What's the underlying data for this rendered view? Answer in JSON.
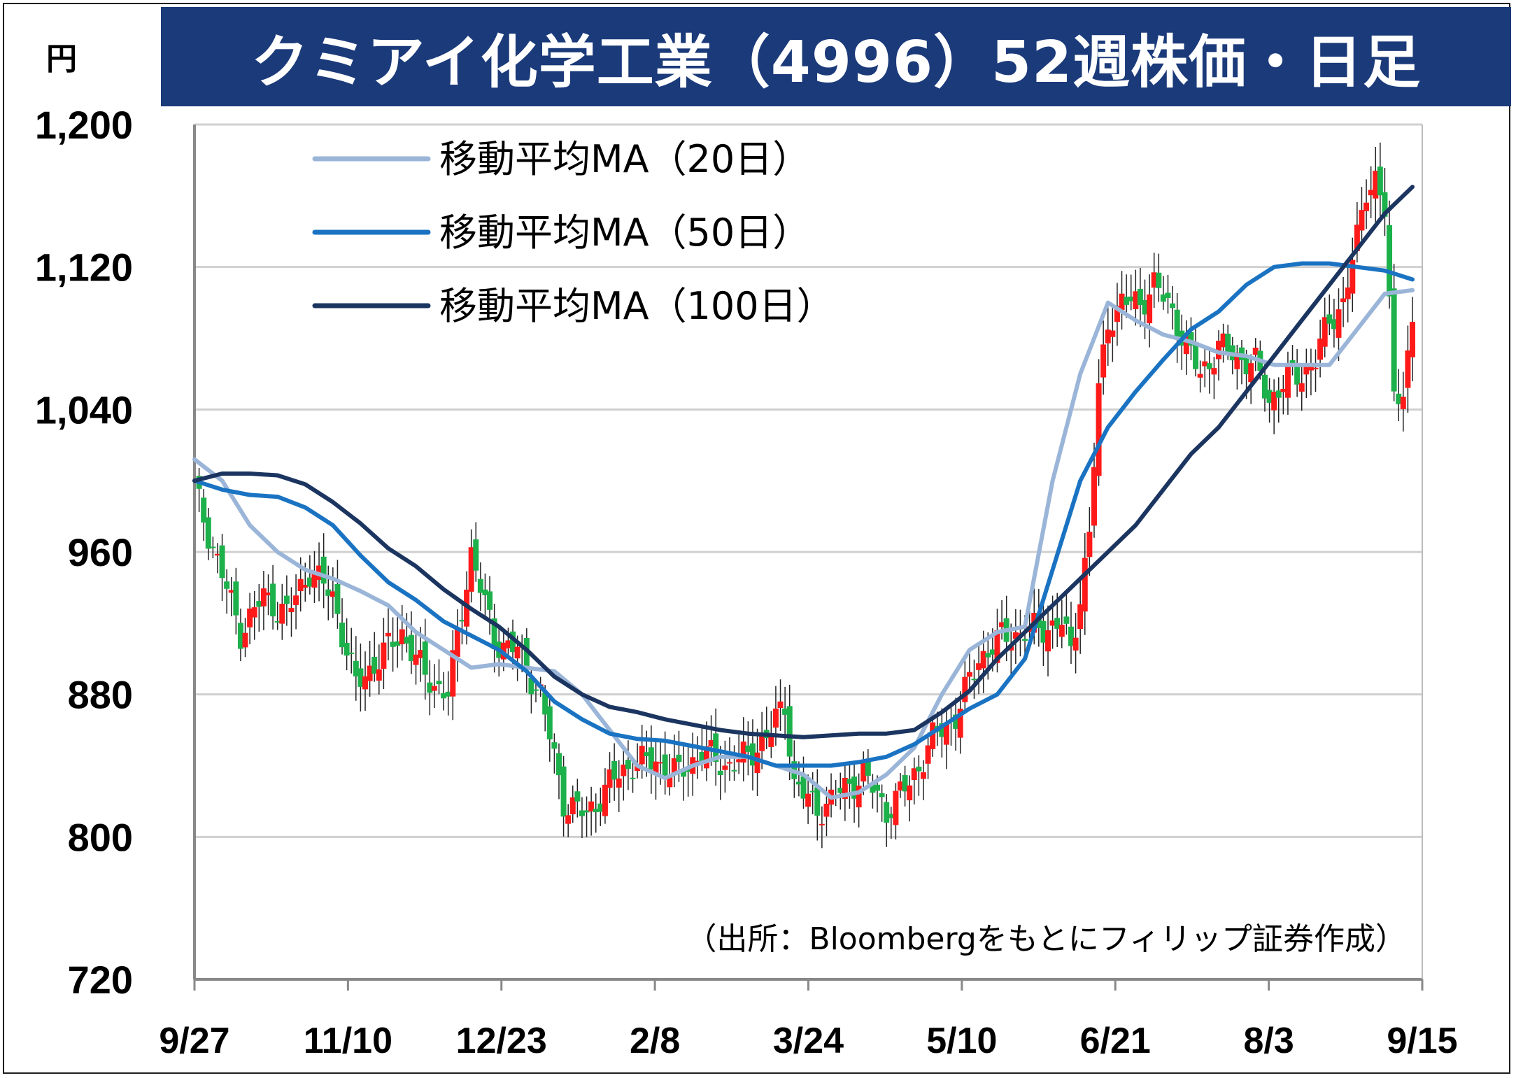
{
  "title": "クミアイ化学工業（4996）52週株価・日足",
  "unit": "円",
  "source_note": "（出所：Bloombergをもとにフィリップ証券作成）",
  "colors": {
    "title_bg": "#1b3a7a",
    "up": "#ff1a1a",
    "down": "#1db14b",
    "ma20": "#9ab5d8",
    "ma50": "#1a73c2",
    "ma100": "#1b3560",
    "grid": "#d0d0d0"
  },
  "chart_data": {
    "type": "candlestick",
    "title": "クミアイ化学工業（4996）52週株価・日足",
    "ylabel": "円",
    "ylim": [
      720,
      1200
    ],
    "yticks": [
      720,
      800,
      880,
      960,
      1040,
      1120,
      1200
    ],
    "ytick_labels": [
      "720",
      "800",
      "880",
      "960",
      "1,040",
      "1,120",
      "1,200"
    ],
    "xtick_labels": [
      "9/27",
      "11/10",
      "12/23",
      "2/8",
      "3/24",
      "5/10",
      "6/21",
      "8/3",
      "9/15"
    ],
    "grid": true,
    "legend_position": "top-left",
    "series": [
      {
        "name": "移動平均MA（20日）",
        "color": "#9ab5d8",
        "values": [
          1012,
          1000,
          975,
          960,
          950,
          945,
          938,
          930,
          915,
          905,
          895,
          897,
          895,
          893,
          880,
          860,
          840,
          833,
          840,
          845,
          845,
          840,
          835,
          822,
          825,
          835,
          850,
          880,
          905,
          915,
          918,
          1000,
          1060,
          1100,
          1090,
          1082,
          1078,
          1072,
          1070,
          1065,
          1065,
          1065,
          1085,
          1105,
          1107
        ]
      },
      {
        "name": "移動平均MA（50日）",
        "color": "#1a73c2",
        "values": [
          1000,
          995,
          992,
          991,
          985,
          975,
          958,
          943,
          933,
          921,
          913,
          905,
          893,
          876,
          866,
          858,
          855,
          854,
          851,
          848,
          845,
          840,
          840,
          840,
          842,
          845,
          852,
          862,
          872,
          880,
          900,
          950,
          1000,
          1030,
          1050,
          1068,
          1085,
          1095,
          1110,
          1120,
          1122,
          1122,
          1120,
          1118,
          1113
        ]
      },
      {
        "name": "移動平均MA（100日）",
        "color": "#1b3560",
        "values": [
          1000,
          1004,
          1004,
          1003,
          998,
          988,
          976,
          962,
          952,
          939,
          928,
          918,
          905,
          890,
          880,
          873,
          870,
          866,
          863,
          860,
          858,
          857,
          856,
          857,
          858,
          858,
          860,
          870,
          882,
          900,
          915,
          930,
          945,
          960,
          975,
          995,
          1015,
          1030,
          1050,
          1070,
          1090,
          1110,
          1130,
          1150,
          1165
        ]
      }
    ]
  }
}
